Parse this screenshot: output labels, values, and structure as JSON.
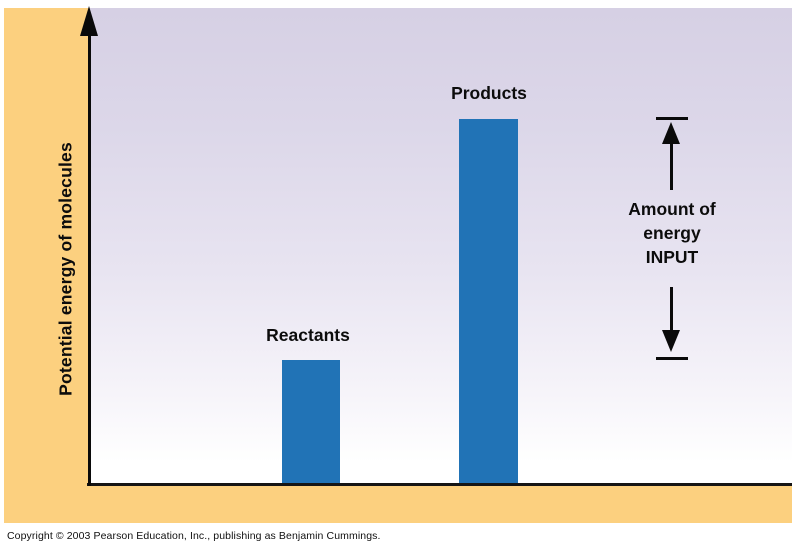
{
  "page": {
    "copyright": "Copyright © 2003 Pearson Education, Inc., publishing as Benjamin Cummings."
  },
  "chart": {
    "y_axis_label": "Potential energy of molecules",
    "bars": [
      {
        "label": "Reactants"
      },
      {
        "label": "Products"
      }
    ],
    "annotation": {
      "lines": [
        "Amount of",
        "energy",
        "INPUT"
      ]
    }
  },
  "chart_data": {
    "type": "bar",
    "categories": [
      "Reactants",
      "Products"
    ],
    "values": [
      26,
      76
    ],
    "value_units": "percent of plot height (no numeric scale shown)",
    "title": "",
    "xlabel": "",
    "ylabel": "Potential energy of molecules",
    "ylim": [
      0,
      100
    ],
    "grid": false,
    "legend": false,
    "axis_style": "single vertical arrow axis, no ticks or numeric labels",
    "annotations": [
      {
        "text": "Amount of energy INPUT",
        "type": "double-ended vertical arrow with end caps",
        "from_value": 26,
        "to_value": 76,
        "meaning": "energy difference between Reactants level and Products level"
      }
    ],
    "colors": {
      "bar_fill": "#2173b6",
      "frame": "#fcd07f",
      "plot_gradient_top": "#d6d0e4",
      "plot_gradient_bottom": "#ffffff",
      "axis": "#0a0a0a"
    }
  }
}
